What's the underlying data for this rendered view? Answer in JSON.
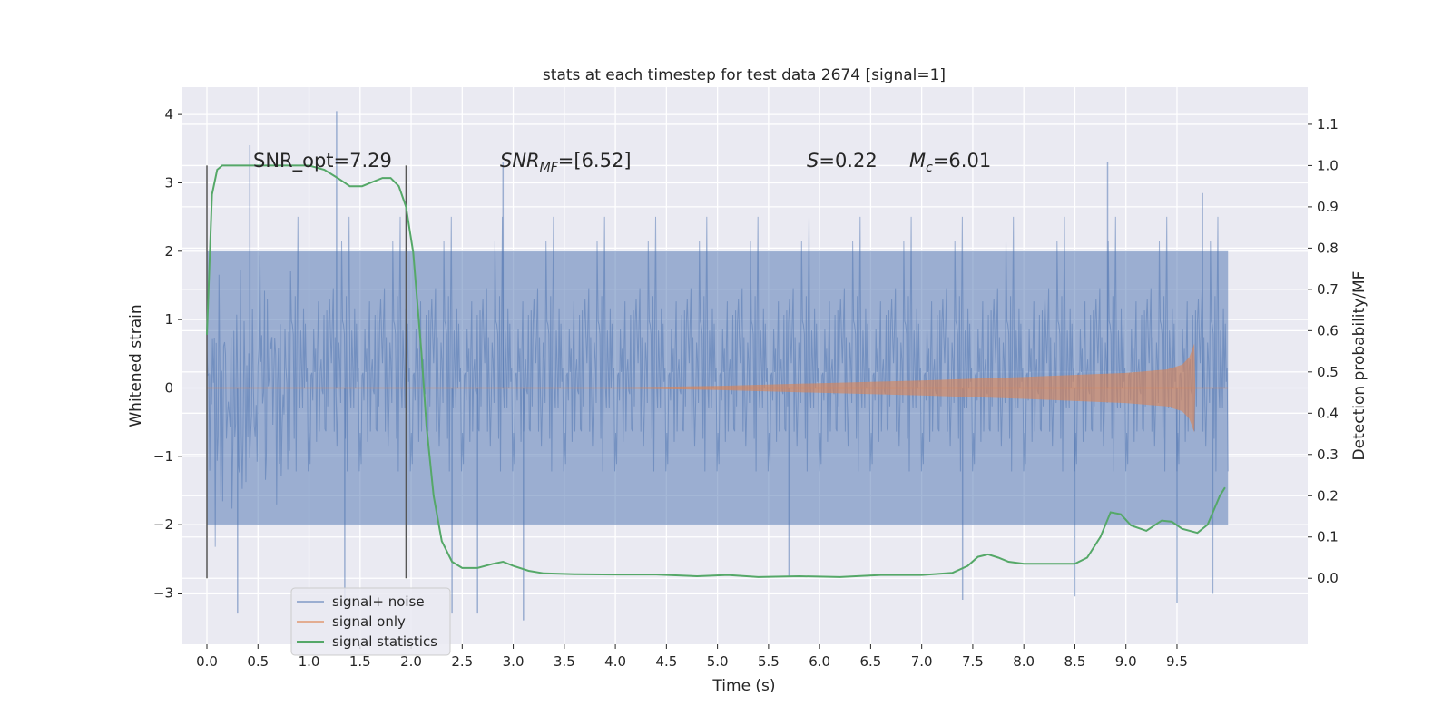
{
  "chart_data": {
    "type": "line",
    "title": "stats at each timestep for test data 2674 [signal=1]",
    "xlabel": "Time (s)",
    "ylabel_left": "Whitened strain",
    "ylabel_right": "Detection probability/MF",
    "xlim": [
      -0.24,
      10.78
    ],
    "ylim_left": [
      -3.75,
      4.4
    ],
    "ylim_right": [
      -0.16,
      1.19
    ],
    "x_ticks": [
      "0.0",
      "0.5",
      "1.0",
      "1.5",
      "2.0",
      "2.5",
      "3.0",
      "3.5",
      "4.0",
      "4.5",
      "5.0",
      "5.5",
      "6.0",
      "6.5",
      "7.0",
      "7.5",
      "8.0",
      "8.5",
      "9.0",
      "9.5"
    ],
    "y_ticks_left": [
      "−3",
      "−2",
      "−1",
      "0",
      "1",
      "2",
      "3",
      "4"
    ],
    "y_ticks_right": [
      "0.0",
      "0.1",
      "0.2",
      "0.3",
      "0.4",
      "0.5",
      "0.6",
      "0.7",
      "0.8",
      "0.9",
      "1.0",
      "1.1"
    ],
    "grid": true,
    "legend_position": "lower-left",
    "annotations": {
      "snr_opt": "SNR_opt=7.29",
      "snr_mf_sym": "SNR",
      "snr_mf_sub": "MF",
      "snr_mf_val": "=[6.52]",
      "s_sym": "S",
      "s_val": "=0.22",
      "mc_sym": "M",
      "mc_sub": "c",
      "mc_val": "=6.01"
    },
    "vertical_markers_x": [
      0.0,
      1.95
    ],
    "series": [
      {
        "name": "signal+ noise",
        "color": "#4c72b0",
        "axis": "left",
        "kind": "noise",
        "x_range": [
          0.0,
          10.0
        ],
        "envelope_upper": 2.0,
        "envelope_lower": -2.0,
        "peak_points": [
          [
            0.3,
            -3.3
          ],
          [
            0.42,
            3.55
          ],
          [
            1.27,
            4.05
          ],
          [
            1.35,
            -3.2
          ],
          [
            2.4,
            -3.3
          ],
          [
            2.65,
            -3.3
          ],
          [
            2.9,
            3.3
          ],
          [
            3.1,
            -3.4
          ],
          [
            5.7,
            -2.75
          ],
          [
            7.4,
            -3.1
          ],
          [
            8.5,
            -3.05
          ],
          [
            8.82,
            3.3
          ],
          [
            9.5,
            -3.15
          ],
          [
            9.75,
            2.85
          ],
          [
            9.85,
            -3.0
          ]
        ]
      },
      {
        "name": "signal only",
        "color": "#dd8452",
        "axis": "left",
        "kind": "chirp",
        "x_range": [
          0.0,
          9.68
        ],
        "amplitude_points": [
          [
            0.0,
            0.003
          ],
          [
            4.0,
            0.005
          ],
          [
            5.0,
            0.03
          ],
          [
            6.0,
            0.07
          ],
          [
            7.0,
            0.11
          ],
          [
            8.0,
            0.16
          ],
          [
            9.0,
            0.22
          ],
          [
            9.4,
            0.27
          ],
          [
            9.55,
            0.34
          ],
          [
            9.62,
            0.45
          ],
          [
            9.67,
            0.65
          ],
          [
            9.68,
            0.0
          ],
          [
            10.0,
            0.0
          ]
        ]
      },
      {
        "name": "signal statistics",
        "color": "#55a868",
        "axis": "right",
        "kind": "line",
        "x": [
          0.0,
          0.05,
          0.1,
          0.15,
          0.25,
          0.4,
          0.6,
          0.8,
          1.0,
          1.15,
          1.28,
          1.4,
          1.52,
          1.62,
          1.72,
          1.8,
          1.88,
          1.95,
          2.02,
          2.1,
          2.15,
          2.22,
          2.3,
          2.4,
          2.5,
          2.65,
          2.8,
          2.9,
          3.0,
          3.15,
          3.3,
          3.6,
          4.0,
          4.4,
          4.8,
          5.1,
          5.4,
          5.8,
          6.2,
          6.6,
          7.0,
          7.3,
          7.45,
          7.55,
          7.65,
          7.75,
          7.85,
          8.0,
          8.25,
          8.5,
          8.62,
          8.75,
          8.85,
          8.95,
          9.05,
          9.2,
          9.35,
          9.45,
          9.55,
          9.7,
          9.8,
          9.92,
          9.97
        ],
        "y": [
          0.59,
          0.93,
          0.99,
          1.0,
          1.0,
          1.0,
          1.0,
          1.0,
          1.0,
          0.99,
          0.97,
          0.95,
          0.95,
          0.96,
          0.97,
          0.97,
          0.95,
          0.9,
          0.79,
          0.55,
          0.37,
          0.2,
          0.09,
          0.04,
          0.025,
          0.025,
          0.035,
          0.04,
          0.03,
          0.018,
          0.012,
          0.01,
          0.009,
          0.009,
          0.005,
          0.008,
          0.003,
          0.005,
          0.003,
          0.008,
          0.008,
          0.013,
          0.03,
          0.052,
          0.058,
          0.05,
          0.04,
          0.035,
          0.035,
          0.035,
          0.05,
          0.1,
          0.16,
          0.155,
          0.128,
          0.115,
          0.14,
          0.137,
          0.12,
          0.11,
          0.13,
          0.2,
          0.22
        ]
      }
    ]
  }
}
